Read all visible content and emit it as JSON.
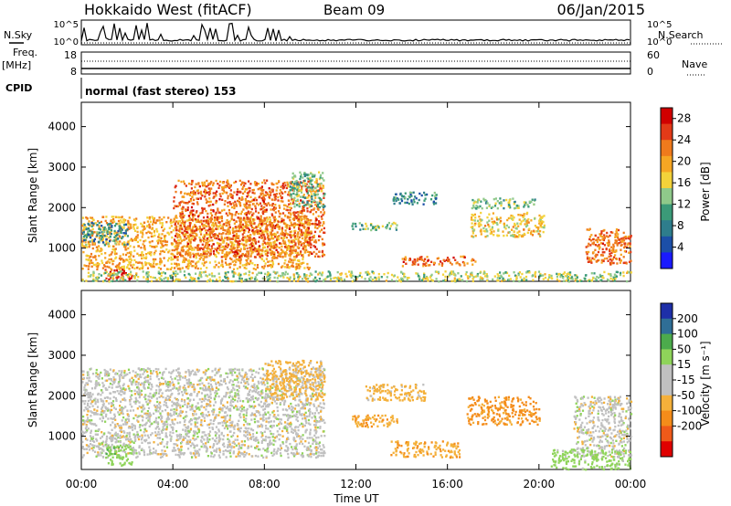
{
  "header": {
    "station": "Hokkaido West (fitACF)",
    "beam": "Beam 09",
    "date": "06/Jan/2015"
  },
  "strip_labels": {
    "nsky": "N.Sky",
    "nsearch": "N.Search",
    "freq": "Freq.",
    "freq_unit": "[MHz]",
    "cpid": "CPID",
    "nave": "Nave",
    "exp_low": "10^0",
    "exp_high": "10^5",
    "freq_low": "8",
    "freq_high": "18",
    "nave_low": "0",
    "nave_high": "60",
    "mode": "normal (fast stereo) 153"
  },
  "colors": {
    "power_scale": [
      "#1a1aff",
      "#1c4fa8",
      "#2e7d8c",
      "#3b9a78",
      "#8fc98a",
      "#f3d23a",
      "#f6a623",
      "#ef7a1c",
      "#e23a18",
      "#d00000"
    ],
    "velocity_scale": [
      "#e00000",
      "#ef5a1a",
      "#f48c1a",
      "#f4b03a",
      "#c0c0c0",
      "#c0c0c0",
      "#8fd45a",
      "#4cab4c",
      "#2f6e96",
      "#1e2fa8"
    ]
  },
  "chart_data": [
    {
      "type": "heatmap",
      "name": "power-panel",
      "xlabel": "Time UT",
      "ylabel": "Slant Range [km]",
      "x_ticks": [
        "00:00",
        "04:00",
        "08:00",
        "12:00",
        "16:00",
        "20:00",
        "00:00"
      ],
      "y_ticks": [
        1000,
        2000,
        3000,
        4000
      ],
      "xlim": [
        0,
        24
      ],
      "ylim": [
        180,
        4600
      ],
      "colorbar": {
        "label": "Power [dB]",
        "ticks": [
          4,
          8,
          12,
          16,
          20,
          24,
          28
        ],
        "range": [
          0,
          30
        ]
      },
      "regions": [
        {
          "t0": 0.0,
          "t1": 10.0,
          "r0": 500,
          "r1": 1800,
          "level": 20
        },
        {
          "t0": 4.0,
          "t1": 10.6,
          "r0": 800,
          "r1": 2700,
          "level": 24
        },
        {
          "t0": 0.0,
          "t1": 2.0,
          "r0": 1100,
          "r1": 1650,
          "level": 8
        },
        {
          "t0": 1.0,
          "t1": 2.2,
          "r0": 250,
          "r1": 500,
          "level": 28
        },
        {
          "t0": 9.0,
          "t1": 10.6,
          "r0": 2000,
          "r1": 2900,
          "level": 12
        },
        {
          "t0": 11.8,
          "t1": 13.8,
          "r0": 1450,
          "r1": 1650,
          "level": 12
        },
        {
          "t0": 13.6,
          "t1": 15.5,
          "r0": 2100,
          "r1": 2400,
          "level": 8
        },
        {
          "t0": 14.0,
          "t1": 17.2,
          "r0": 580,
          "r1": 820,
          "level": 24
        },
        {
          "t0": 17.0,
          "t1": 20.2,
          "r0": 1300,
          "r1": 1900,
          "level": 18
        },
        {
          "t0": 17.0,
          "t1": 19.8,
          "r0": 2000,
          "r1": 2250,
          "level": 12
        },
        {
          "t0": 22.0,
          "t1": 24.0,
          "r0": 600,
          "r1": 1500,
          "level": 24
        },
        {
          "t0": 0.0,
          "t1": 24.0,
          "r0": 200,
          "r1": 450,
          "level": 14
        }
      ]
    },
    {
      "type": "heatmap",
      "name": "velocity-panel",
      "xlabel": "Time UT",
      "ylabel": "Slant Range [km]",
      "x_ticks": [
        "00:00",
        "04:00",
        "08:00",
        "12:00",
        "16:00",
        "20:00",
        "00:00"
      ],
      "y_ticks": [
        1000,
        2000,
        3000,
        4000
      ],
      "xlim": [
        0,
        24
      ],
      "ylim": [
        180,
        4600
      ],
      "colorbar": {
        "label": "Velocity [m s⁻¹]",
        "ticks": [
          200,
          100,
          50,
          15,
          -15,
          -50,
          -100,
          -200
        ]
      },
      "regions": [
        {
          "t0": 0.0,
          "t1": 10.6,
          "r0": 500,
          "r1": 2700,
          "velocity": 0
        },
        {
          "t0": 1.0,
          "t1": 2.2,
          "r0": 300,
          "r1": 800,
          "velocity": 40
        },
        {
          "t0": 8.0,
          "t1": 10.6,
          "r0": 1900,
          "r1": 2900,
          "velocity": -30
        },
        {
          "t0": 11.8,
          "t1": 13.8,
          "r0": 1250,
          "r1": 1550,
          "velocity": -40
        },
        {
          "t0": 12.4,
          "t1": 15.0,
          "r0": 1900,
          "r1": 2300,
          "velocity": -30
        },
        {
          "t0": 13.5,
          "t1": 16.5,
          "r0": 500,
          "r1": 900,
          "velocity": -40
        },
        {
          "t0": 16.8,
          "t1": 20.0,
          "r0": 1300,
          "r1": 2000,
          "velocity": -60
        },
        {
          "t0": 21.5,
          "t1": 24.0,
          "r0": 500,
          "r1": 2000,
          "velocity": 0
        },
        {
          "t0": 20.5,
          "t1": 24.0,
          "r0": 200,
          "r1": 700,
          "velocity": 30
        }
      ]
    },
    {
      "type": "line",
      "name": "noise-strip",
      "series": []
    }
  ]
}
